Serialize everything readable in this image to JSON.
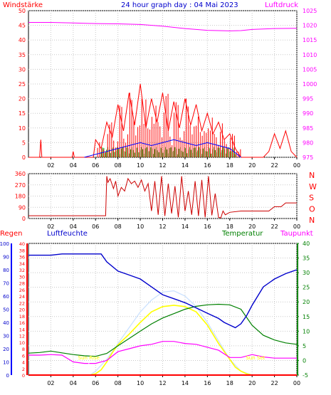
{
  "title": "24 hour graph day : 04 Mai 2023",
  "chart_data": [
    {
      "type": "line",
      "name": "wind-pressure",
      "left_axis_label": "Windstärke",
      "right_axis_label": "Luftdruck",
      "x_ticks": [
        "02",
        "04",
        "06",
        "08",
        "10",
        "12",
        "14",
        "16",
        "18",
        "20",
        "22",
        "00"
      ],
      "left_ticks": [
        0,
        5,
        10,
        15,
        20,
        25,
        30,
        35,
        40,
        45,
        50
      ],
      "left_range": [
        0,
        50
      ],
      "right_ticks": [
        975,
        980,
        985,
        990,
        995,
        1000,
        1005,
        1010,
        1015,
        1020,
        1025
      ],
      "right_range": [
        975,
        1025
      ],
      "grid": true,
      "series": [
        {
          "axis": "right",
          "color": "#ff00ff",
          "x": [
            0,
            2,
            4,
            6,
            8,
            10,
            12,
            14,
            16,
            18,
            19,
            20,
            22,
            24
          ],
          "y": [
            1021,
            1021,
            1020.8,
            1020.6,
            1020.5,
            1020.3,
            1019.7,
            1018.9,
            1018.3,
            1018.1,
            1018.2,
            1018.6,
            1018.9,
            1019
          ]
        },
        {
          "axis": "left",
          "color": "#0000ff",
          "x": [
            5,
            6,
            7,
            8,
            9,
            10,
            11,
            12,
            13,
            14,
            15,
            16,
            17,
            18,
            19
          ],
          "y": [
            0,
            1,
            2,
            3,
            4,
            5,
            4,
            5,
            6,
            5,
            4,
            5,
            4,
            3,
            0
          ]
        },
        {
          "axis": "left",
          "color": "#ff0000",
          "x": [
            0,
            1,
            1.1,
            1.2,
            2,
            3,
            3.9,
            4,
            4.1,
            5,
            5.8,
            6,
            6.5,
            7,
            7.5,
            8,
            8.5,
            9,
            9.5,
            10,
            10.5,
            11,
            11.5,
            12,
            12.5,
            13,
            13.5,
            14,
            14.5,
            15,
            15.5,
            16,
            16.5,
            17,
            17.5,
            18,
            18.5,
            19,
            20,
            21,
            21.5,
            22,
            22.5,
            23,
            23.5,
            24
          ],
          "y": [
            0,
            0,
            6,
            0,
            0,
            0,
            0,
            2,
            0,
            0,
            0,
            6,
            3,
            12,
            7,
            18,
            9,
            22,
            11,
            25,
            10,
            20,
            12,
            22,
            9,
            19,
            10,
            20,
            11,
            18,
            9,
            15,
            8,
            12,
            6,
            8,
            3,
            0,
            0,
            0,
            2,
            8,
            3,
            9,
            2,
            0
          ]
        }
      ]
    },
    {
      "type": "line",
      "name": "wind-direction",
      "left_ticks": [
        0,
        90,
        180,
        270,
        360
      ],
      "left_range": [
        0,
        360
      ],
      "right_labels": [
        "N",
        "W",
        "S",
        "O",
        "N"
      ],
      "x_ticks": [
        "02",
        "04",
        "06",
        "08",
        "10",
        "12",
        "14",
        "16",
        "18",
        "20",
        "22",
        "00"
      ],
      "grid": true,
      "series": [
        {
          "color": "#cc0000",
          "x": [
            0,
            1,
            2,
            3,
            4,
            5,
            6,
            6.3,
            6.5,
            6.9,
            7,
            7.1,
            7.3,
            7.6,
            7.8,
            8,
            8.3,
            8.6,
            8.9,
            9.2,
            9.5,
            9.8,
            10.1,
            10.4,
            10.7,
            11,
            11.3,
            11.6,
            11.9,
            12.2,
            12.5,
            12.8,
            13.1,
            13.4,
            13.7,
            14,
            14.3,
            14.6,
            14.9,
            15.2,
            15.5,
            15.8,
            16.1,
            16.4,
            16.7,
            17,
            17.2,
            17.4,
            17.6,
            18,
            19,
            20,
            21,
            21.5,
            22,
            22.6,
            23,
            24
          ],
          "y": [
            22,
            22,
            22,
            22,
            22,
            22,
            22,
            22,
            22,
            22,
            340,
            290,
            320,
            240,
            300,
            180,
            250,
            220,
            320,
            280,
            300,
            250,
            310,
            220,
            280,
            60,
            300,
            30,
            340,
            20,
            280,
            40,
            260,
            10,
            340,
            60,
            220,
            30,
            300,
            20,
            310,
            10,
            340,
            25,
            200,
            10,
            5,
            60,
            30,
            50,
            60,
            60,
            60,
            60,
            95,
            95,
            125,
            125
          ]
        }
      ]
    },
    {
      "type": "line",
      "name": "humidity-temperature",
      "left_label_a": "Regen",
      "left_label_b": "Luftfeuchte",
      "right_label_a": "Temperatur",
      "right_label_b": "Taupunkt",
      "x_ticks": [
        "02",
        "04",
        "06",
        "08",
        "10",
        "12",
        "14",
        "16",
        "18",
        "20",
        "22",
        "00"
      ],
      "humidity_ticks": [
        0,
        10,
        20,
        30,
        40,
        50,
        60,
        70,
        80,
        90,
        100
      ],
      "humidity_range": [
        0,
        100
      ],
      "rain_ticks": [
        0,
        2,
        4,
        6,
        8,
        10,
        12,
        14,
        16,
        18,
        20,
        22,
        24,
        26,
        28,
        30,
        32,
        34,
        36,
        38,
        40
      ],
      "rain_range": [
        0,
        40
      ],
      "temp_ticks": [
        -5,
        0,
        5,
        10,
        15,
        20,
        25,
        30,
        35,
        40
      ],
      "temp_range": [
        -5,
        40
      ],
      "annotations": [
        {
          "text": "Sun Rise",
          "x": 5.4
        },
        {
          "text": "Sun Set",
          "x": 20.3
        }
      ],
      "grid": true,
      "series": [
        {
          "name": "Luftfeuchte",
          "color": "#0000cc",
          "axis": "humidity",
          "x": [
            0,
            1,
            2,
            3,
            4,
            5,
            6,
            6.5,
            7,
            8,
            9,
            10,
            11,
            12,
            13,
            14,
            15,
            16,
            17,
            17.5,
            18,
            18.5,
            19,
            19.5,
            20,
            21,
            22,
            23,
            24
          ],
          "y": [
            91,
            91,
            91,
            92,
            92,
            92,
            92,
            92,
            86,
            79,
            76,
            73,
            67,
            61,
            58,
            55,
            51,
            47,
            43,
            40,
            38,
            36,
            39,
            45,
            53,
            67,
            73,
            77,
            80
          ]
        },
        {
          "name": "Temperatur",
          "color": "#008000",
          "axis": "temp",
          "x": [
            0,
            1,
            2,
            3,
            4,
            5,
            6,
            7,
            8,
            9,
            10,
            11,
            12,
            13,
            14,
            15,
            16,
            17,
            18,
            19,
            20,
            21,
            22,
            23,
            24
          ],
          "y": [
            2.5,
            2.7,
            3.2,
            2.6,
            2,
            1.6,
            1.4,
            2.4,
            5,
            7.5,
            10,
            12.5,
            14.5,
            16,
            17.5,
            18.5,
            19,
            19.2,
            19,
            17.5,
            12,
            8.6,
            7,
            6,
            5.5
          ]
        },
        {
          "name": "Taupunkt",
          "color": "#ff00ff",
          "axis": "temp",
          "x": [
            0,
            1,
            2,
            3,
            4,
            5,
            6,
            7,
            8,
            9,
            10,
            11,
            12,
            13,
            14,
            15,
            16,
            17,
            18,
            19,
            20,
            21,
            22,
            23,
            24
          ],
          "y": [
            1.8,
            1.8,
            2,
            1.8,
            -0.5,
            -1,
            -1,
            0,
            3,
            4,
            5,
            5.5,
            6.5,
            6.5,
            5.8,
            5.5,
            4.5,
            3.5,
            1,
            1,
            2,
            1.2,
            0.8,
            0.8,
            0.8
          ]
        },
        {
          "name": "Sonne",
          "color": "#ffff00",
          "axis": "humidity",
          "x": [
            0,
            5.5,
            6,
            6.5,
            7,
            7.5,
            8,
            9,
            10,
            11,
            12,
            13,
            14,
            15,
            16,
            17,
            18,
            18.5,
            19,
            19.5,
            20,
            24
          ],
          "y": [
            0,
            0,
            1,
            4,
            10,
            17,
            23,
            31,
            40,
            48,
            52,
            53,
            52,
            48,
            38,
            24,
            12,
            6,
            3,
            1,
            0,
            0
          ]
        },
        {
          "name": "Strahlung",
          "color": "#c8e0ff",
          "axis": "humidity",
          "x": [
            0,
            5.5,
            6,
            7,
            8,
            9,
            10,
            11,
            12,
            13,
            14,
            15,
            16,
            17,
            18,
            19,
            20,
            24
          ],
          "y": [
            0,
            0,
            3,
            12,
            24,
            36,
            48,
            57,
            63,
            64,
            60,
            52,
            40,
            26,
            12,
            3,
            0,
            0
          ]
        },
        {
          "name": "Regen",
          "color": "#ff0000",
          "axis": "rain",
          "x": [
            0,
            24
          ],
          "y": [
            0,
            0
          ]
        }
      ]
    }
  ]
}
